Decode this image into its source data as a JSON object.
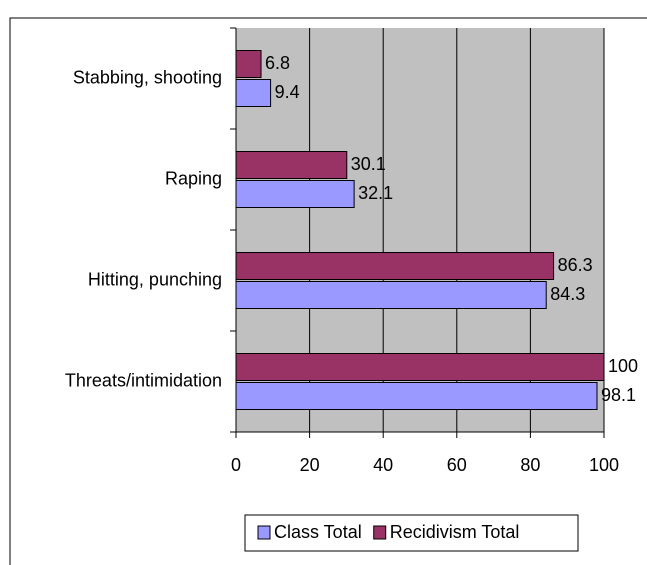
{
  "chart_data": {
    "type": "hbar",
    "categories": [
      "Stabbing, shooting",
      "Raping",
      "Hitting, punching",
      "Threats/intimidation"
    ],
    "series": [
      {
        "name": "Class Total",
        "color": "#9999ff",
        "values": [
          9.4,
          32.1,
          84.3,
          98.1
        ]
      },
      {
        "name": "Recidivism Total",
        "color": "#993366",
        "values": [
          6.8,
          30.1,
          86.3,
          100
        ]
      }
    ],
    "xlim": [
      0,
      100
    ],
    "xticks": [
      0,
      20,
      40,
      60,
      80,
      100
    ],
    "grid": true,
    "legend": "bottom"
  }
}
